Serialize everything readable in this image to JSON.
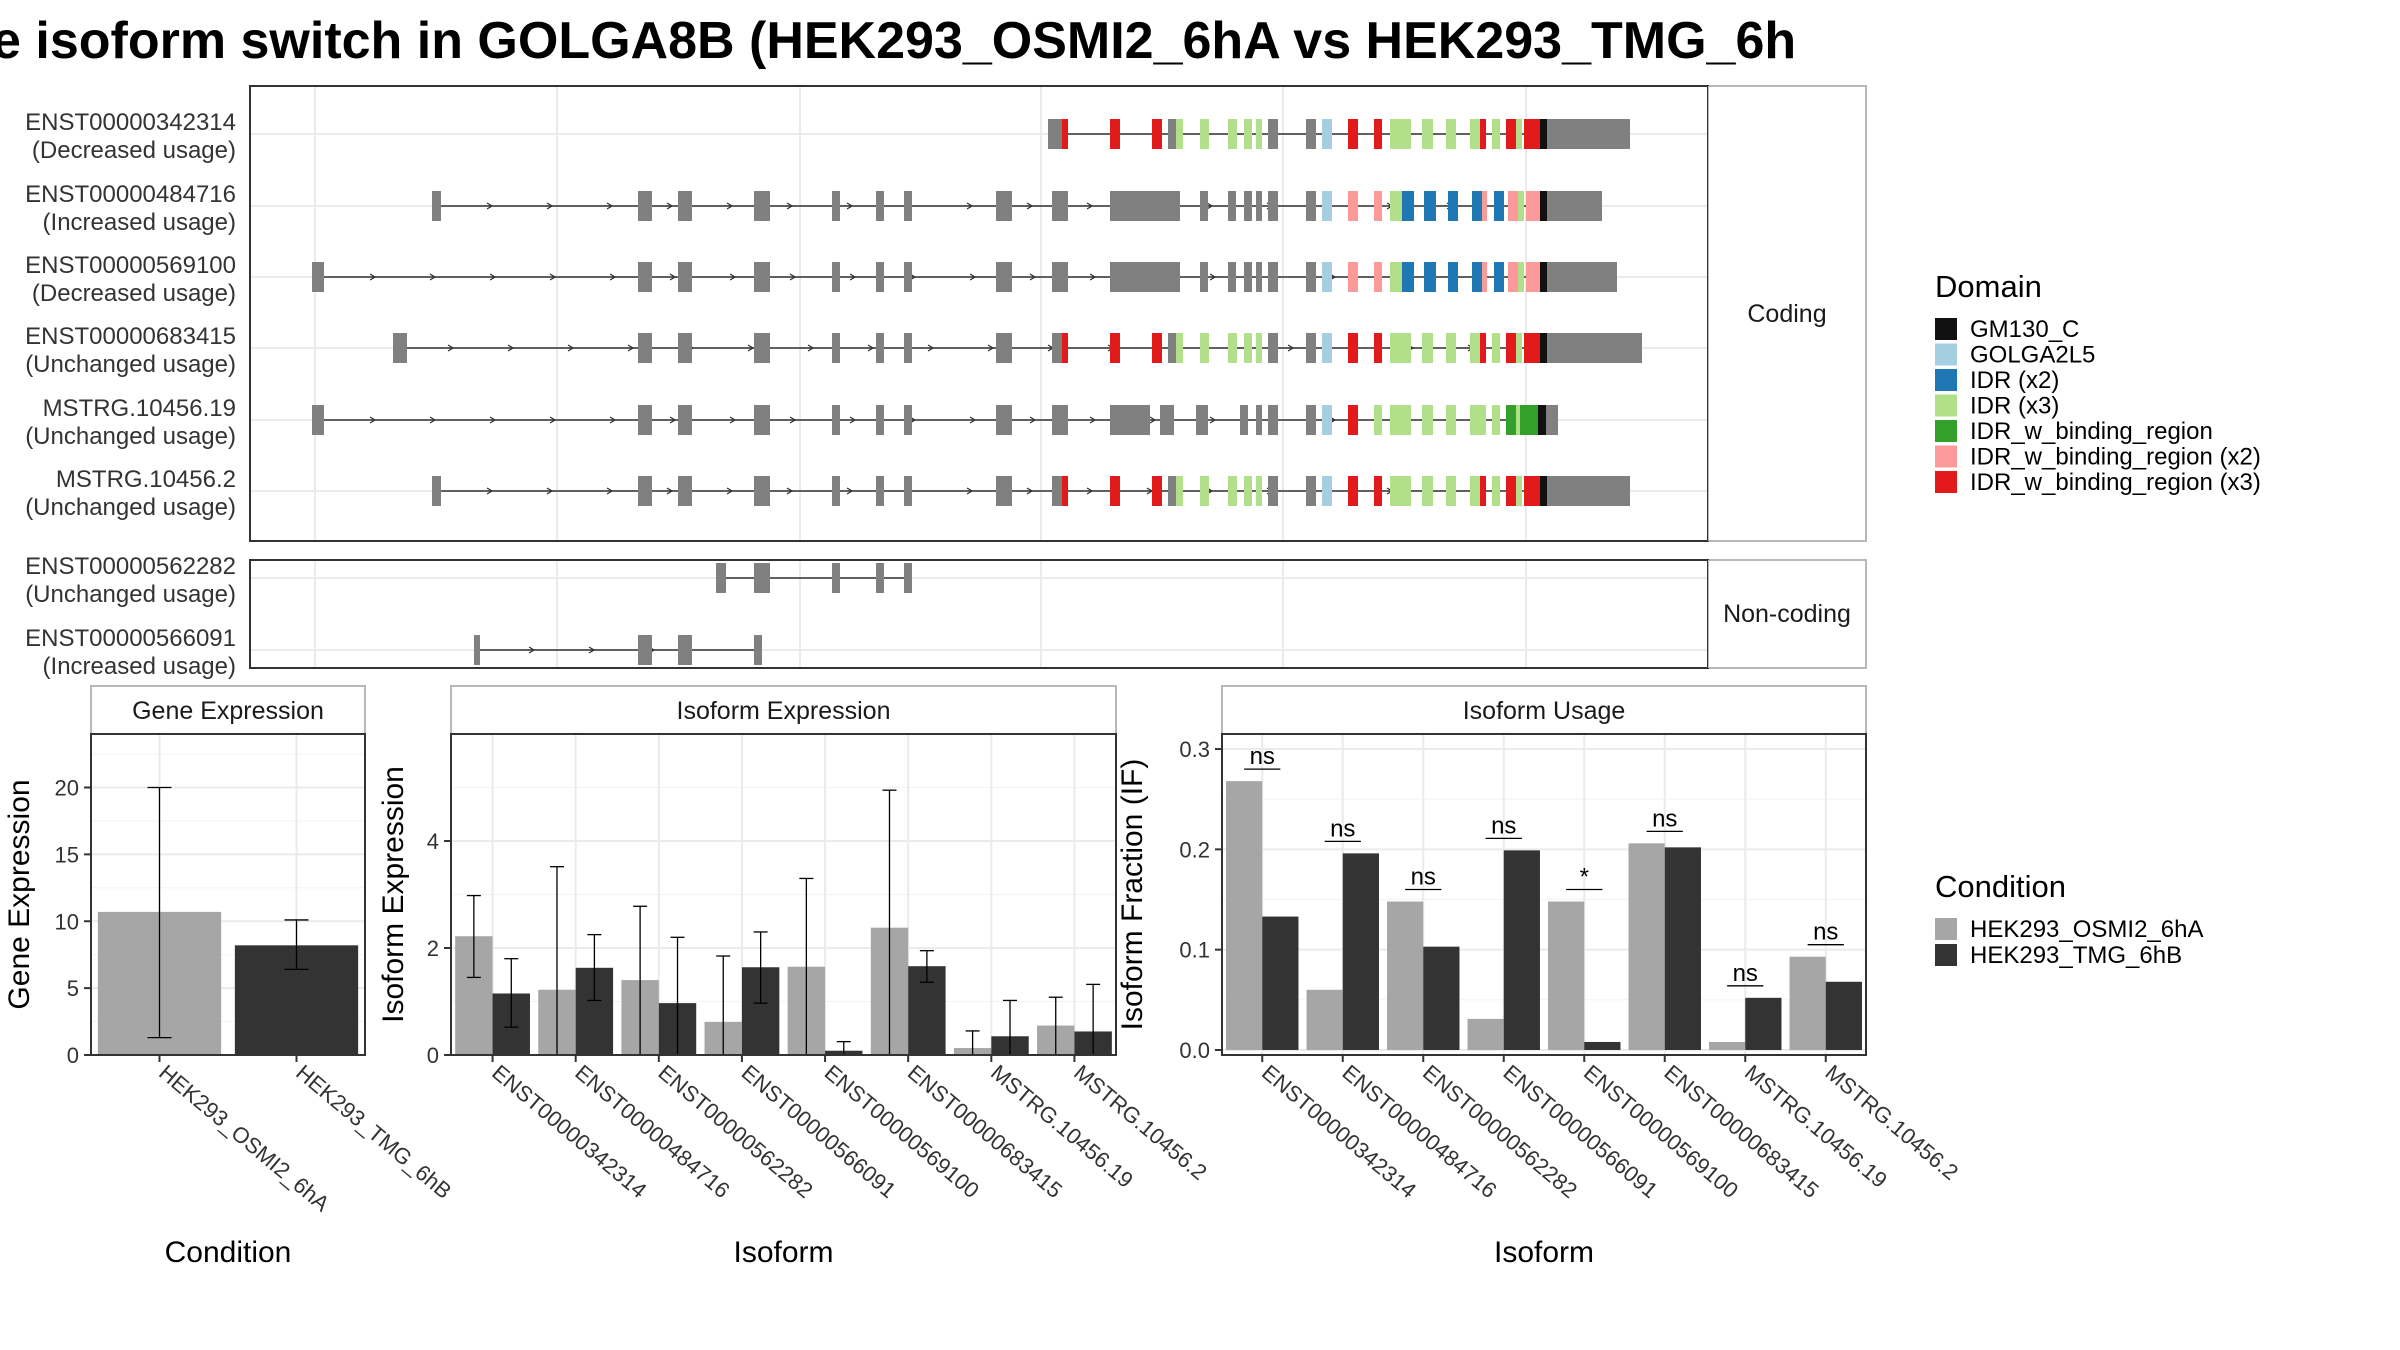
{
  "title": "e isoform switch in GOLGA8B (HEK293_OSMI2_6hA vs HEK293_TMG_6h",
  "colors": {
    "cond1": "#a6a6a6",
    "cond2": "#333333",
    "exon": "#808080",
    "GM130_C": "#111111",
    "GOLGA2L5": "#a6cee3",
    "IDR (x2)": "#1f78b4",
    "IDR (x3)": "#b2df8a",
    "IDR_w_binding_region": "#33a02c",
    "IDR_w_binding_region (x2)": "#fb9a99",
    "IDR_w_binding_region (x3)": "#e31a1c"
  },
  "structure": {
    "coding_strip": "Coding",
    "noncoding_strip": "Non-coding",
    "coding": [
      {
        "id": "ENST00000342314",
        "usage": "(Decreased usage)"
      },
      {
        "id": "ENST00000484716",
        "usage": "(Increased usage)"
      },
      {
        "id": "ENST00000569100",
        "usage": "(Decreased usage)"
      },
      {
        "id": "ENST00000683415",
        "usage": "(Unchanged usage)"
      },
      {
        "id": "MSTRG.10456.19",
        "usage": "(Unchanged usage)"
      },
      {
        "id": "MSTRG.10456.2",
        "usage": "(Unchanged usage)"
      }
    ],
    "noncoding": [
      {
        "id": "ENST00000562282",
        "usage": "(Unchanged usage)"
      },
      {
        "id": "ENST00000566091",
        "usage": "(Increased usage)"
      }
    ]
  },
  "legend_domain": {
    "title": "Domain",
    "items": [
      "GM130_C",
      "GOLGA2L5",
      "IDR (x2)",
      "IDR (x3)",
      "IDR_w_binding_region",
      "IDR_w_binding_region (x2)",
      "IDR_w_binding_region (x3)"
    ]
  },
  "legend_condition": {
    "title": "Condition",
    "items": [
      "HEK293_OSMI2_6hA",
      "HEK293_TMG_6hB"
    ]
  },
  "chart_data": [
    {
      "type": "bar",
      "title": "Gene Expression",
      "xlabel": "Condition",
      "ylabel": "Gene Expression",
      "categories": [
        "HEK293_OSMI2_6hA",
        "HEK293_TMG_6hB"
      ],
      "values": [
        10.7,
        8.2
      ],
      "error_low": [
        1.3,
        6.4
      ],
      "error_high": [
        20.0,
        10.1
      ],
      "ylim": [
        0,
        24
      ],
      "yticks": [
        0,
        5,
        10,
        15,
        20
      ]
    },
    {
      "type": "bar",
      "title": "Isoform Expression",
      "xlabel": "Isoform",
      "ylabel": "Isoform Expression",
      "categories": [
        "ENST00000342314",
        "ENST00000484716",
        "ENST00000562282",
        "ENST00000566091",
        "ENST00000569100",
        "ENST00000683415",
        "MSTRG.10456.19",
        "MSTRG.10456.2"
      ],
      "series": [
        {
          "name": "HEK293_OSMI2_6hA",
          "values": [
            2.22,
            1.22,
            1.4,
            0.62,
            1.65,
            2.38,
            0.13,
            0.55
          ],
          "error_low": [
            1.45,
            0.0,
            0.0,
            0.0,
            0.0,
            0.0,
            0.0,
            0.0
          ],
          "error_high": [
            2.98,
            3.52,
            2.78,
            1.85,
            3.3,
            4.95,
            0.45,
            1.08
          ]
        },
        {
          "name": "HEK293_TMG_6hB",
          "values": [
            1.15,
            1.63,
            0.97,
            1.64,
            0.08,
            1.66,
            0.35,
            0.44
          ],
          "error_low": [
            0.52,
            1.02,
            0.0,
            0.97,
            0.0,
            1.36,
            0.0,
            0.0
          ],
          "error_high": [
            1.8,
            2.25,
            2.2,
            2.3,
            0.25,
            1.95,
            1.02,
            1.32
          ]
        }
      ],
      "ylim": [
        0,
        6
      ],
      "yticks": [
        0,
        2,
        4
      ]
    },
    {
      "type": "bar",
      "title": "Isoform Usage",
      "xlabel": "Isoform",
      "ylabel": "Isoform Fraction (IF)",
      "categories": [
        "ENST00000342314",
        "ENST00000484716",
        "ENST00000562282",
        "ENST00000566091",
        "ENST00000569100",
        "ENST00000683415",
        "MSTRG.10456.19",
        "MSTRG.10456.2"
      ],
      "series": [
        {
          "name": "HEK293_OSMI2_6hA",
          "values": [
            0.268,
            0.06,
            0.148,
            0.031,
            0.148,
            0.206,
            0.008,
            0.093
          ]
        },
        {
          "name": "HEK293_TMG_6hB",
          "values": [
            0.133,
            0.196,
            0.103,
            0.199,
            0.008,
            0.202,
            0.052,
            0.068
          ]
        }
      ],
      "significance": [
        "ns",
        "ns",
        "ns",
        "ns",
        "*",
        "ns",
        "ns",
        "ns"
      ],
      "ylim": [
        -0.005,
        0.315
      ],
      "yticks": [
        0.0,
        0.1,
        0.2,
        0.3
      ],
      "ytick_labels": [
        "0.0",
        "0.1",
        "0.2",
        "0.3"
      ]
    }
  ]
}
